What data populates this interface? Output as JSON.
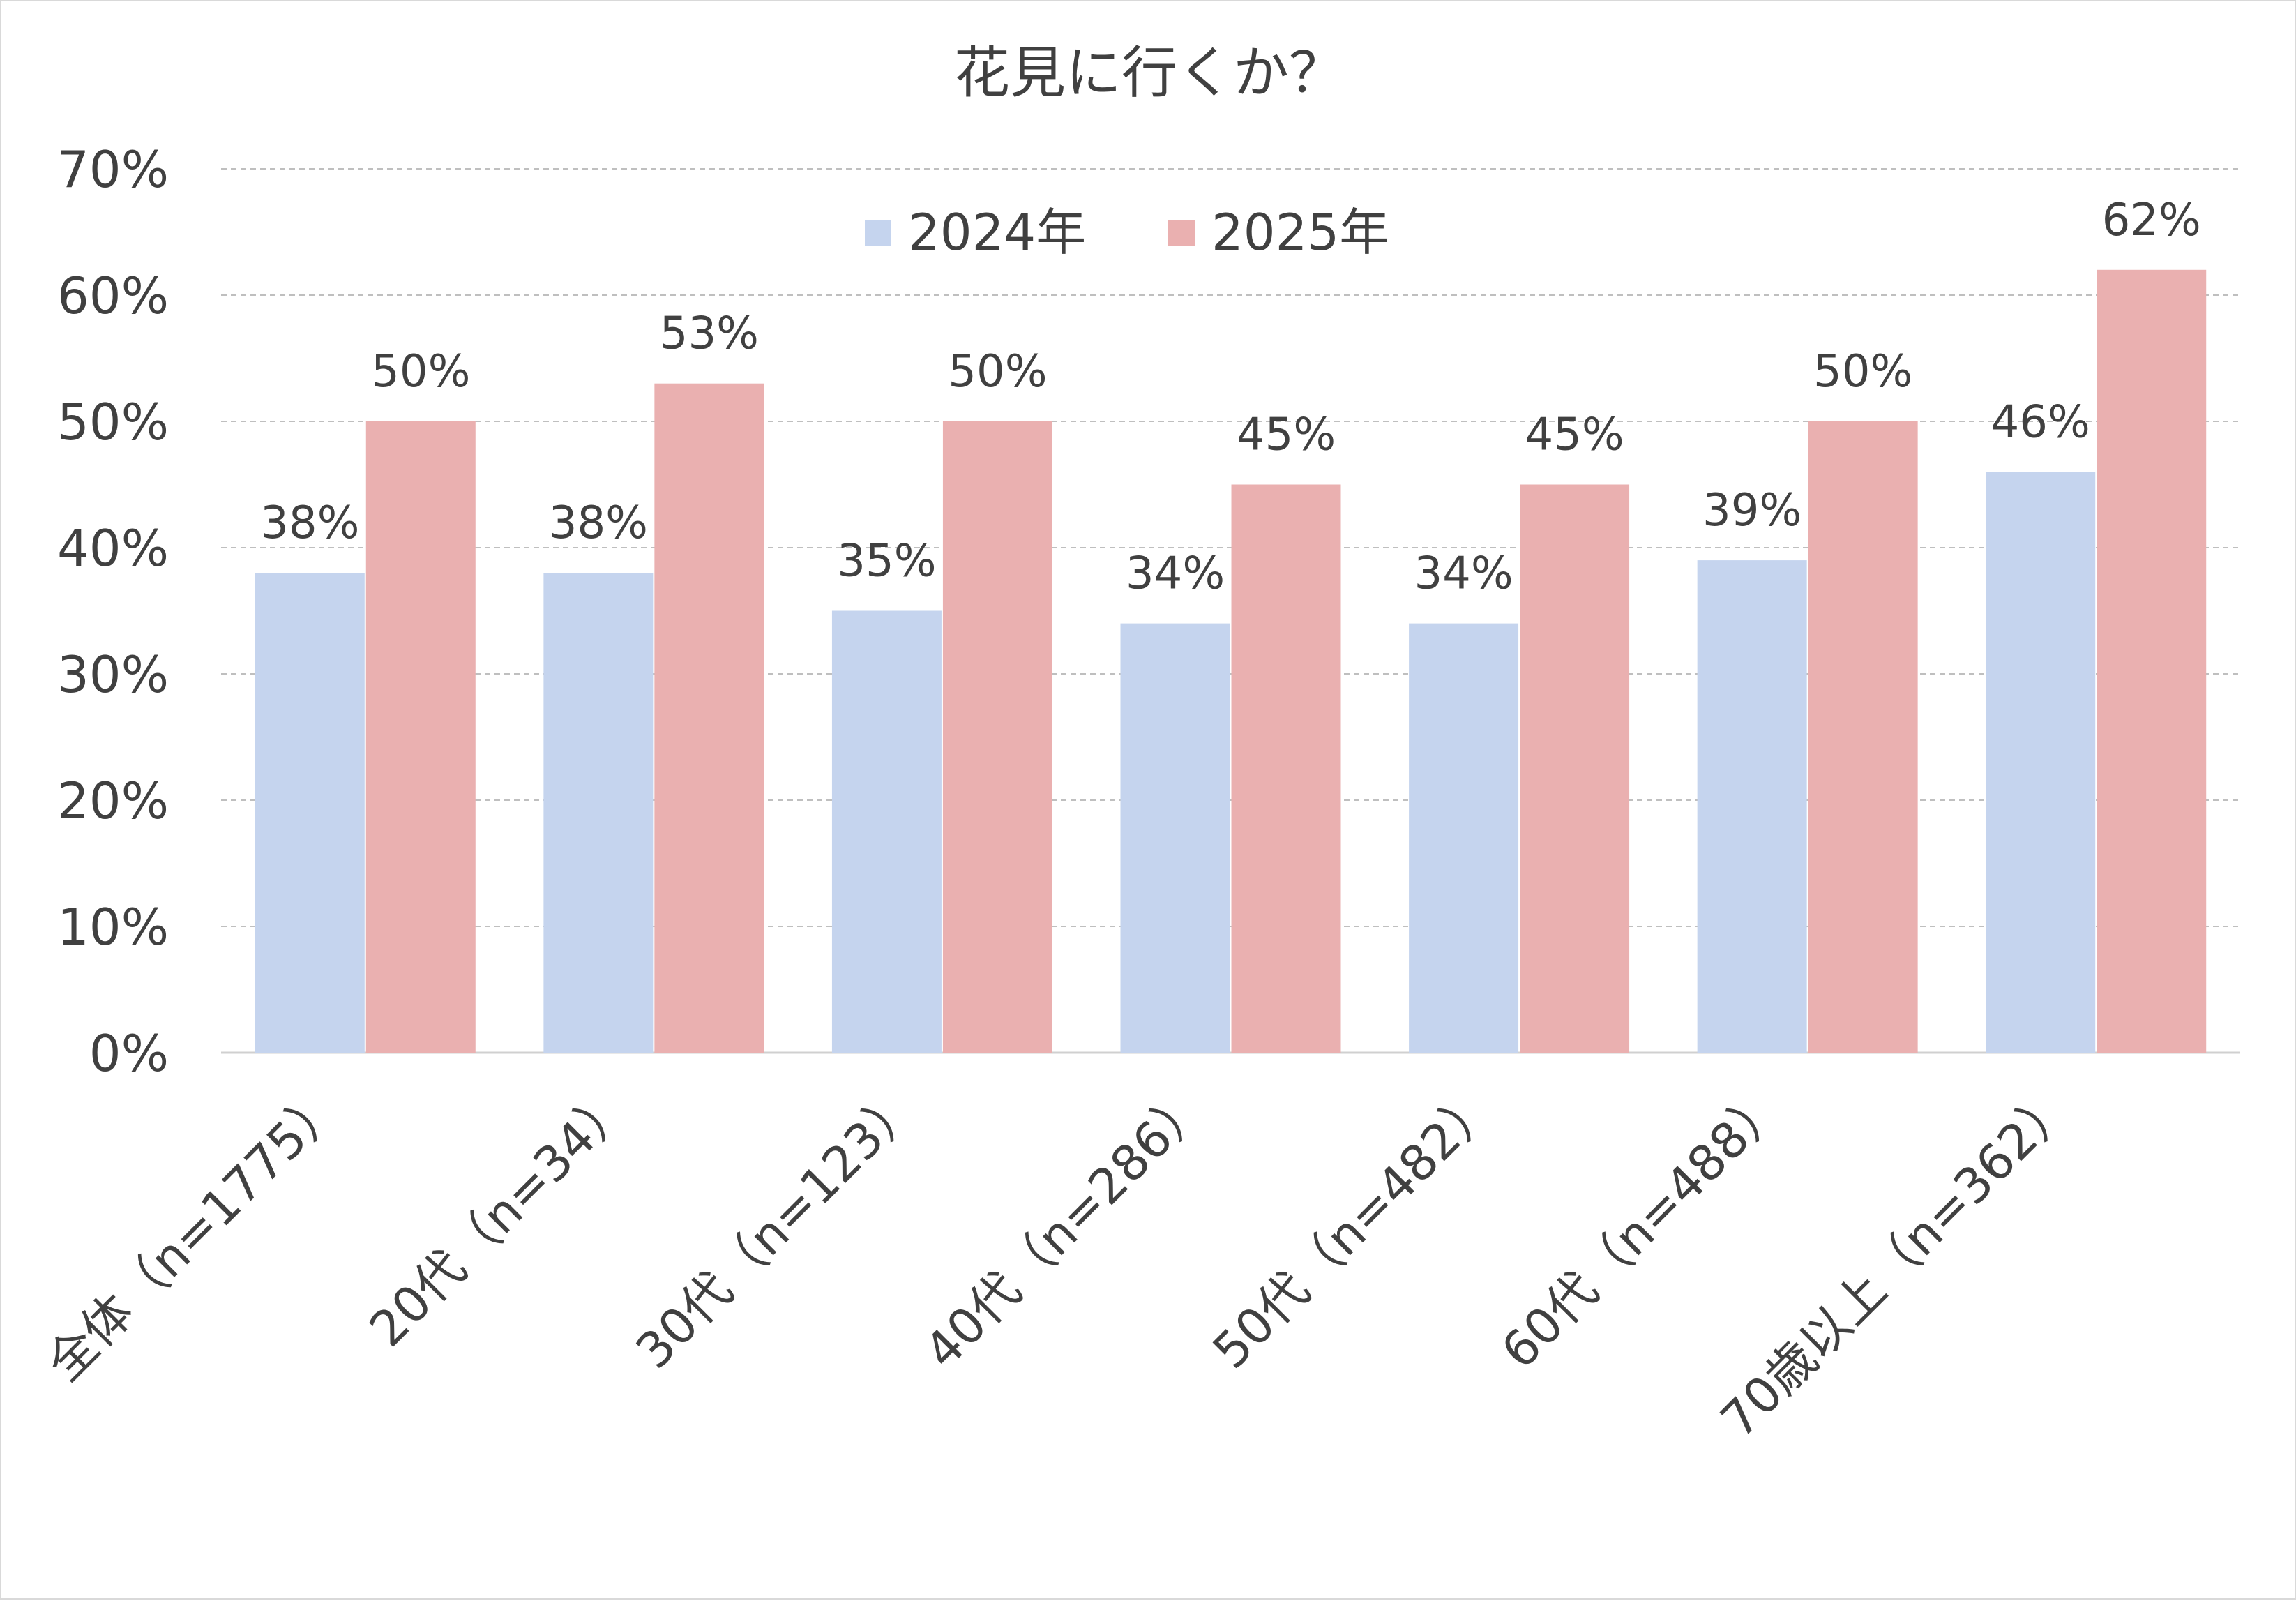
{
  "chart_data": {
    "type": "bar",
    "title": "花見に行くか？",
    "categories": [
      "全体（n=1775）",
      "20代（n=34）",
      "30代（n=123）",
      "40代（n=286）",
      "50代（n=482）",
      "60代（n=488）",
      "70歳以上（n=362）"
    ],
    "series": [
      {
        "name": "2024年",
        "color": "#c5d4ee",
        "values": [
          38,
          38,
          35,
          34,
          34,
          39,
          46
        ],
        "labels": [
          "38%",
          "38%",
          "35%",
          "34%",
          "34%",
          "39%",
          "46%"
        ]
      },
      {
        "name": "2025年",
        "color": "#eab0b0",
        "values": [
          50,
          53,
          50,
          45,
          45,
          50,
          62
        ],
        "labels": [
          "50%",
          "53%",
          "50%",
          "45%",
          "45%",
          "50%",
          "62%"
        ]
      }
    ],
    "ylim": [
      0,
      70
    ],
    "yticks": [
      "0%",
      "10%",
      "20%",
      "30%",
      "40%",
      "50%",
      "60%",
      "70%"
    ],
    "xlabel": "",
    "ylabel": "",
    "grid": true,
    "legend_position": "top-center"
  }
}
